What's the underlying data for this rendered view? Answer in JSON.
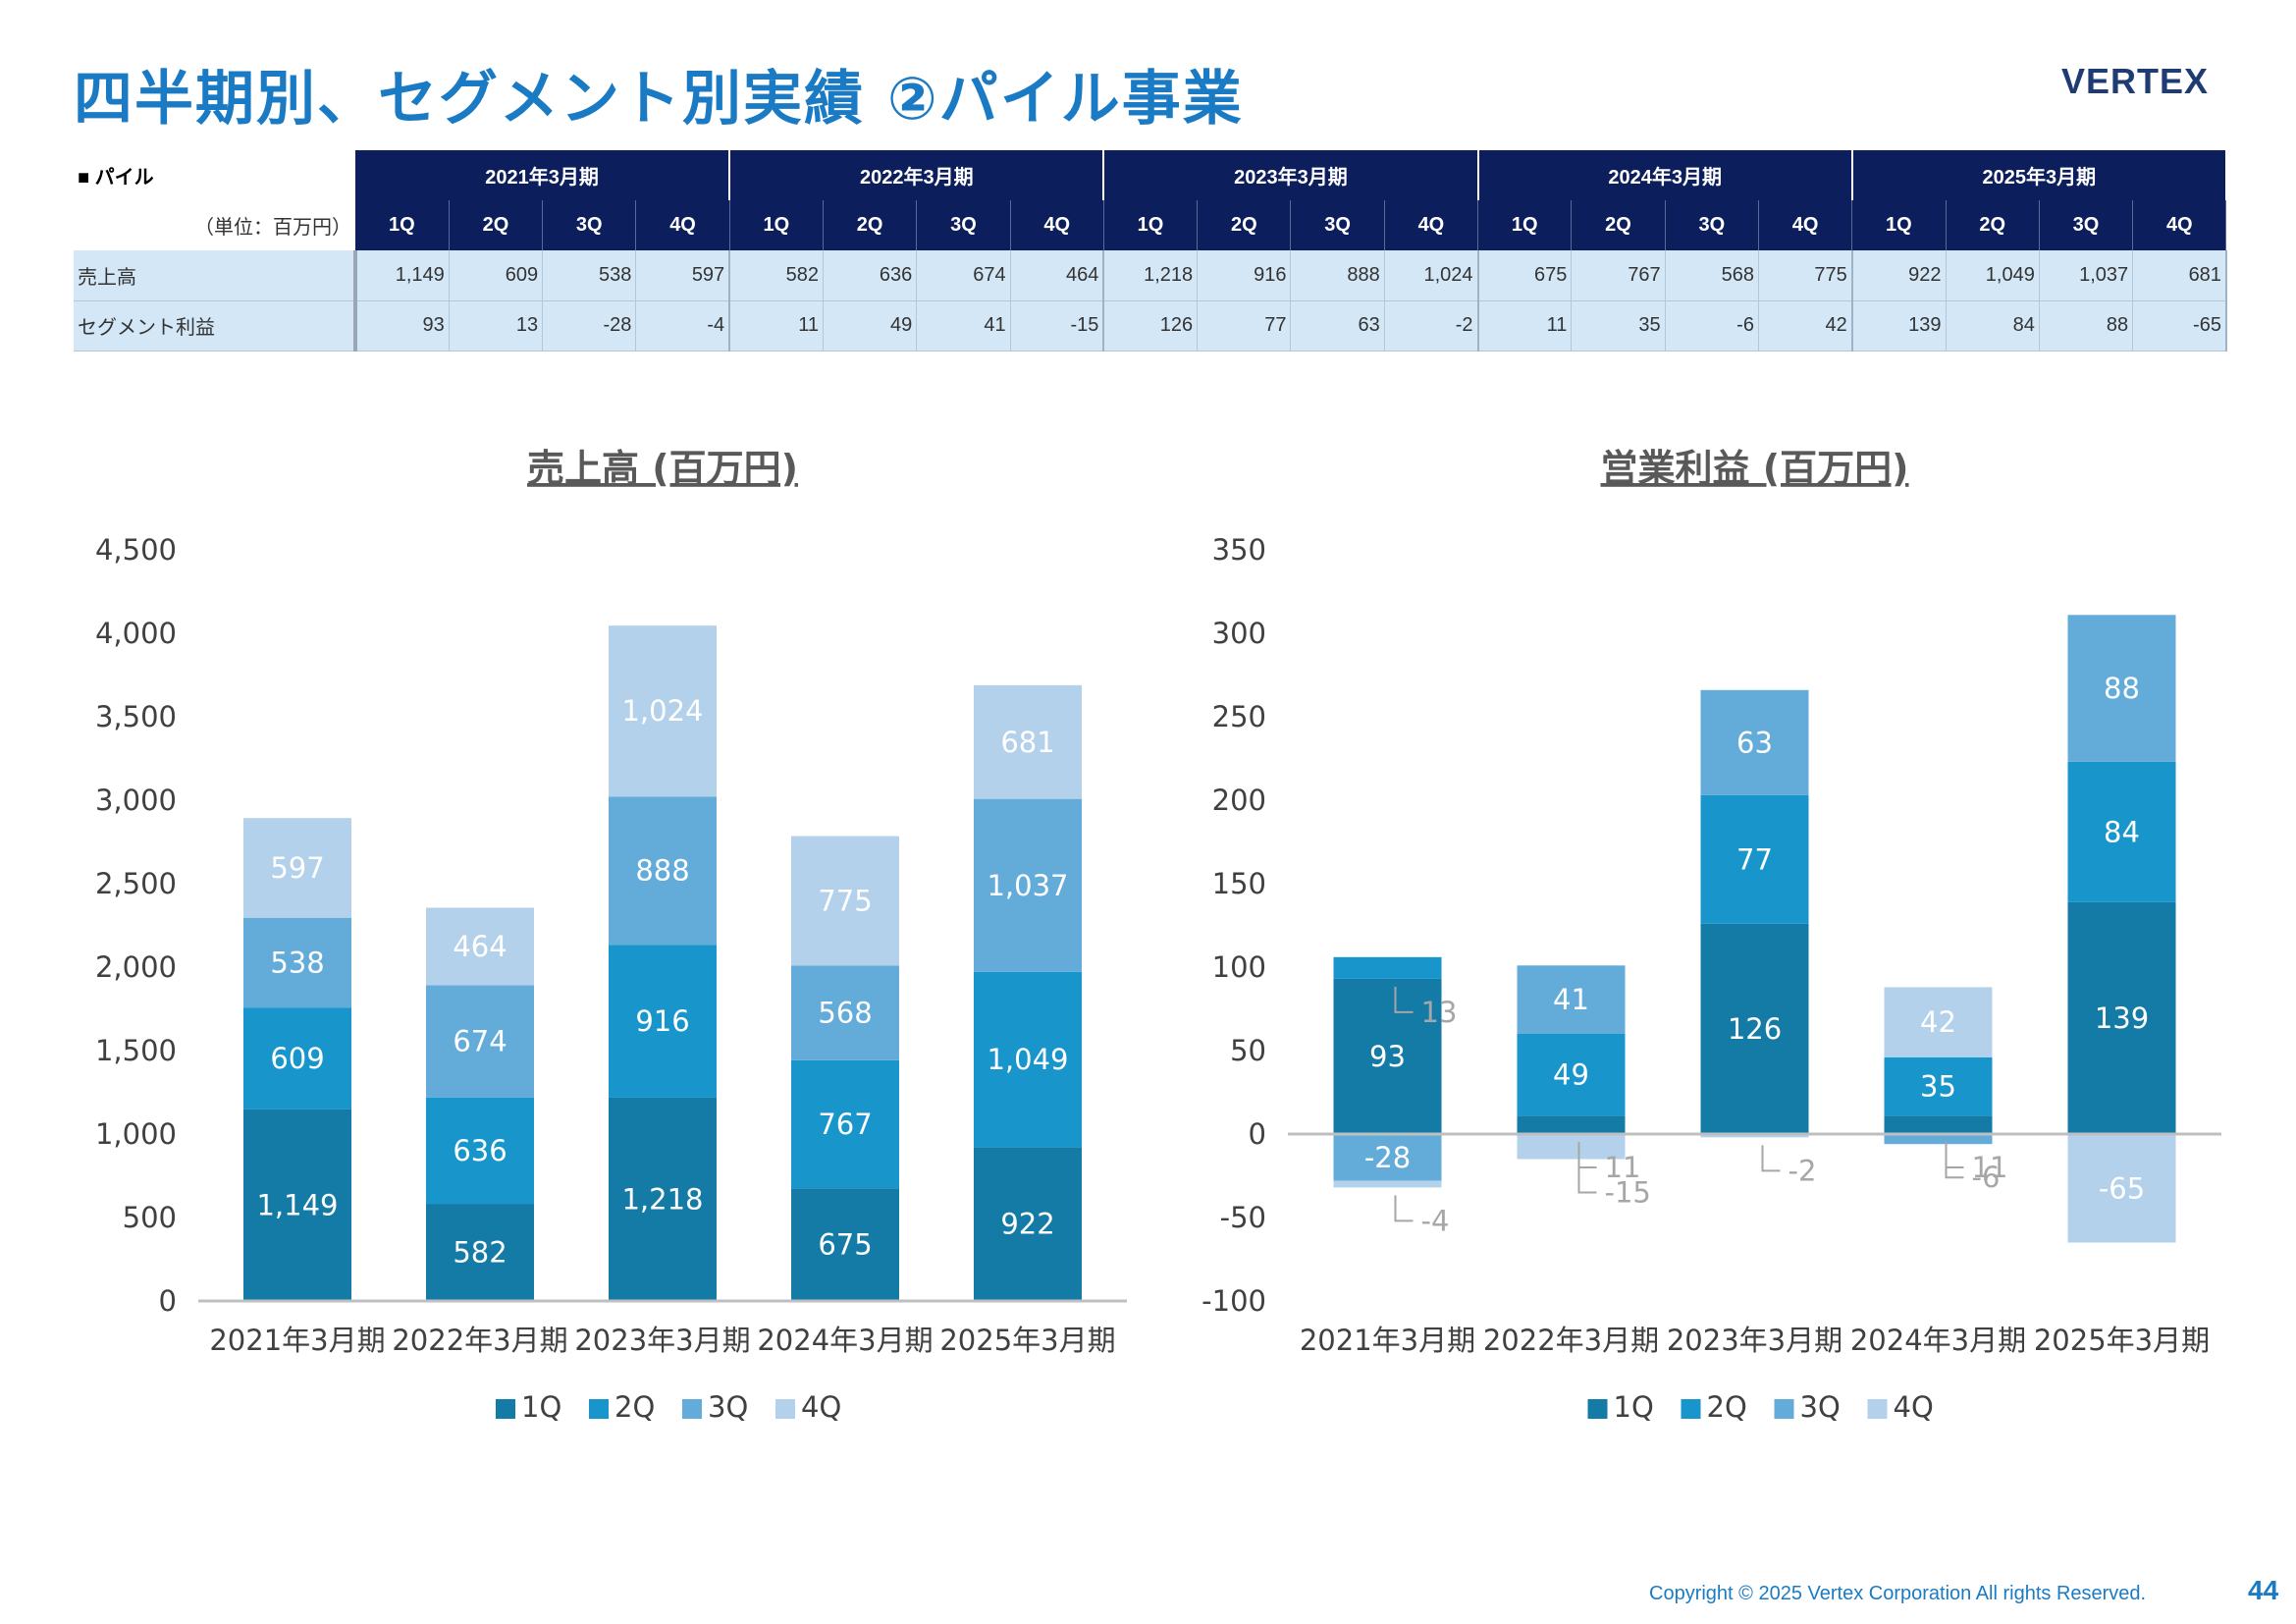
{
  "page": {
    "title": "四半期別、セグメント別実績 ②パイル事業",
    "logo": "VERTEX",
    "footer": "Copyright © 2025 Vertex Corporation All rights Reserved.",
    "page_number": "44"
  },
  "table": {
    "segment_label": "■ パイル",
    "unit_label": "（単位：百万円）",
    "years": [
      "2021年3月期",
      "2022年3月期",
      "2023年3月期",
      "2024年3月期",
      "2025年3月期"
    ],
    "quarters": [
      "1Q",
      "2Q",
      "3Q",
      "4Q"
    ],
    "rows": [
      {
        "label": "売上高",
        "values": [
          "1,149",
          "609",
          "538",
          "597",
          "582",
          "636",
          "674",
          "464",
          "1,218",
          "916",
          "888",
          "1,024",
          "675",
          "767",
          "568",
          "775",
          "922",
          "1,049",
          "1,037",
          "681"
        ]
      },
      {
        "label": "セグメント利益",
        "values": [
          "93",
          "13",
          "-28",
          "-4",
          "11",
          "49",
          "41",
          "-15",
          "126",
          "77",
          "63",
          "-2",
          "11",
          "35",
          "-6",
          "42",
          "139",
          "84",
          "88",
          "-65"
        ]
      }
    ]
  },
  "colors": {
    "q1": "#137ba6",
    "q2": "#1896cc",
    "q3": "#63acda",
    "q4": "#b3d1ea",
    "axis": "#bfbfbf",
    "title": "#595959",
    "tick": "#404040"
  },
  "chart_data": [
    {
      "type": "bar",
      "stacked": true,
      "title": "売上高 (百万円)",
      "categories": [
        "2021年3月期",
        "2022年3月期",
        "2023年3月期",
        "2024年3月期",
        "2025年3月期"
      ],
      "series": [
        {
          "name": "1Q",
          "values": [
            1149,
            582,
            1218,
            675,
            922
          ]
        },
        {
          "name": "2Q",
          "values": [
            609,
            636,
            916,
            767,
            1049
          ]
        },
        {
          "name": "3Q",
          "values": [
            538,
            674,
            888,
            568,
            1037
          ]
        },
        {
          "name": "4Q",
          "values": [
            597,
            464,
            1024,
            775,
            681
          ]
        }
      ],
      "ylim": [
        0,
        4500
      ],
      "yticks": [
        0,
        500,
        1000,
        1500,
        2000,
        2500,
        3000,
        3500,
        4000,
        4500
      ],
      "ytick_labels": [
        "0",
        "500",
        "1,000",
        "1,500",
        "2,000",
        "2,500",
        "3,000",
        "3,500",
        "4,000",
        "4,500"
      ],
      "legend": "bottom"
    },
    {
      "type": "bar",
      "stacked": true,
      "title": "営業利益 (百万円)",
      "categories": [
        "2021年3月期",
        "2022年3月期",
        "2023年3月期",
        "2024年3月期",
        "2025年3月期"
      ],
      "series": [
        {
          "name": "1Q",
          "values": [
            93,
            11,
            126,
            11,
            139
          ]
        },
        {
          "name": "2Q",
          "values": [
            13,
            49,
            77,
            35,
            84
          ]
        },
        {
          "name": "3Q",
          "values": [
            -28,
            41,
            63,
            -6,
            88
          ]
        },
        {
          "name": "4Q",
          "values": [
            -4,
            -15,
            -2,
            42,
            -65
          ]
        }
      ],
      "ylim": [
        -100,
        350
      ],
      "yticks": [
        -100,
        -50,
        0,
        50,
        100,
        150,
        200,
        250,
        300,
        350
      ],
      "ytick_labels": [
        "-100",
        "-50",
        "0",
        "50",
        "100",
        "150",
        "200",
        "250",
        "300",
        "350"
      ],
      "legend": "bottom"
    }
  ]
}
